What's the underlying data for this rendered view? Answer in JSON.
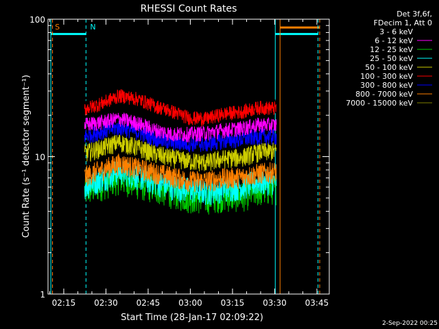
{
  "chart_data": {
    "type": "line",
    "title": "RHESSI Count Rates",
    "xlabel": "Start Time (28-Jan-17 02:09:22)",
    "ylabel": "Count Rate (s⁻¹ detector segment⁻¹)",
    "yscale": "log",
    "ylim": [
      1,
      100
    ],
    "xlim_minutes": [
      0,
      100
    ],
    "x_ticks": [
      {
        "label": "02:15",
        "minutes": 5.6
      },
      {
        "label": "02:30",
        "minutes": 20.6
      },
      {
        "label": "02:45",
        "minutes": 35.6
      },
      {
        "label": "03:00",
        "minutes": 50.6
      },
      {
        "label": "03:15",
        "minutes": 65.6
      },
      {
        "label": "03:30",
        "minutes": 80.6
      },
      {
        "label": "03:45",
        "minutes": 95.6
      }
    ],
    "y_ticks": [
      {
        "label": "1",
        "value": 1
      },
      {
        "label": "10",
        "value": 10
      },
      {
        "label": "100",
        "value": 100
      }
    ],
    "data_start_minutes": 13.0,
    "data_end_minutes": 81.2,
    "legend_header": [
      "Det 3f,6f,",
      "FDecim 1, Att 0"
    ],
    "series": [
      {
        "name": "3 - 6 keV",
        "color": "#000000",
        "values": [
          22.9,
          25.1,
          28.3,
          27.2,
          24.3,
          22.4,
          20.0,
          19.8,
          21.5,
          22.0,
          23.8,
          23.4
        ]
      },
      {
        "name": "6 - 12 keV",
        "color": "#ff00ff",
        "values": [
          17.0,
          17.9,
          18.9,
          17.6,
          15.7,
          14.6,
          14.6,
          14.9,
          15.6,
          16.1,
          17.1,
          17.0
        ]
      },
      {
        "name": "12 - 25 keV",
        "color": "#00cc00",
        "values": [
          5.6,
          6.3,
          7.0,
          6.4,
          6.0,
          5.5,
          5.1,
          5.0,
          5.2,
          5.2,
          5.7,
          5.9
        ]
      },
      {
        "name": "25 - 50 keV",
        "color": "#00ffff",
        "values": [
          6.1,
          7.0,
          7.9,
          7.3,
          6.6,
          6.1,
          5.8,
          5.6,
          5.9,
          6.1,
          6.6,
          6.7
        ]
      },
      {
        "name": "50 - 100 keV",
        "color": "#cccc00",
        "values": [
          10.6,
          11.6,
          12.8,
          11.7,
          10.5,
          9.8,
          9.3,
          9.1,
          9.7,
          9.9,
          10.8,
          11.0
        ]
      },
      {
        "name": "100 - 300 keV",
        "color": "#ff0000",
        "values": [
          22.2,
          24.5,
          27.8,
          26.4,
          23.5,
          21.4,
          19.2,
          18.9,
          20.6,
          21.2,
          22.8,
          22.5
        ]
      },
      {
        "name": "300 - 800 keV",
        "color": "#0000ff",
        "values": [
          14.1,
          15.3,
          16.4,
          15.2,
          13.7,
          12.7,
          12.5,
          12.4,
          13.1,
          13.4,
          14.1,
          14.0
        ]
      },
      {
        "name": "800 - 7000 keV",
        "color": "#ff8000",
        "values": [
          7.2,
          8.1,
          9.0,
          8.3,
          7.7,
          7.2,
          6.7,
          6.7,
          7.0,
          7.1,
          7.6,
          7.8
        ]
      },
      {
        "name": "7000 - 15000 keV",
        "color": "#808000",
        "values": []
      }
    ],
    "annotations": [
      {
        "text": "S",
        "color": "#ff8000",
        "minutes": 1.0
      },
      {
        "text": "N",
        "color": "#00ffff",
        "minutes": 13.5
      }
    ],
    "vlines": [
      {
        "minutes": 1.0,
        "color": "#00ffff",
        "style": "solid"
      },
      {
        "minutes": 1.6,
        "color": "#ff8000",
        "style": "dashed"
      },
      {
        "minutes": 13.5,
        "color": "#00ffff",
        "style": "dashed"
      },
      {
        "minutes": 80.8,
        "color": "#00ffff",
        "style": "solid"
      },
      {
        "minutes": 82.5,
        "color": "#ff8000",
        "style": "solid"
      },
      {
        "minutes": 96.0,
        "color": "#00ffff",
        "style": "dashed"
      },
      {
        "minutes": 96.6,
        "color": "#ff8000",
        "style": "dashed"
      }
    ],
    "flag_bars": [
      {
        "color": "#00ffff",
        "start": 1.0,
        "end": 13.5,
        "level": 78
      },
      {
        "color": "#00ffff",
        "start": 80.8,
        "end": 96.0,
        "level": 78
      },
      {
        "color": "#ff8000",
        "start": 82.5,
        "end": 96.6,
        "level": 87
      }
    ]
  },
  "footer": {
    "date": "2-Sep-2022 00:25"
  }
}
